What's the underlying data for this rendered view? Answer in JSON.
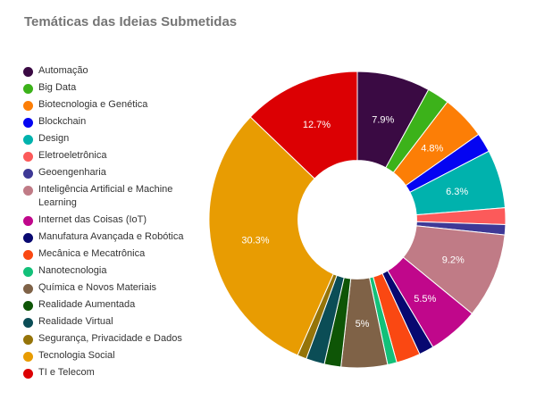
{
  "chart_data": {
    "type": "pie",
    "title": "Temáticas das Ideias Submetidas",
    "legend_position": "left",
    "hole": 0.4,
    "slices": [
      {
        "label": "Automação",
        "value": 7.9,
        "color": "#3a0a43",
        "show_label": true,
        "data_label": "7.9%"
      },
      {
        "label": "Big Data",
        "value": 2.4,
        "color": "#3cb21a",
        "show_label": false,
        "data_label": ""
      },
      {
        "label": "Biotecnologia e Genética",
        "value": 4.8,
        "color": "#fc7e06",
        "show_label": true,
        "data_label": "4.8%"
      },
      {
        "label": "Blockchain",
        "value": 2.1,
        "color": "#0404f2",
        "show_label": false,
        "data_label": ""
      },
      {
        "label": "Design",
        "value": 6.3,
        "color": "#00b2ad",
        "show_label": true,
        "data_label": "6.3%"
      },
      {
        "label": "Eletroeletrônica",
        "value": 1.8,
        "color": "#fc5a5a",
        "show_label": false,
        "data_label": ""
      },
      {
        "label": "Geoengenharia",
        "value": 1.1,
        "color": "#3e3996",
        "show_label": false,
        "data_label": ""
      },
      {
        "label": "Inteligência Artificial e Machine Learning",
        "value": 9.2,
        "color": "#c07b86",
        "show_label": true,
        "data_label": "9.2%"
      },
      {
        "label": "Internet das Coisas (IoT)",
        "value": 5.5,
        "color": "#c0078b",
        "show_label": true,
        "data_label": "5.5%"
      },
      {
        "label": "Manufatura Avançada e Robótica",
        "value": 1.6,
        "color": "#080870",
        "show_label": false,
        "data_label": ""
      },
      {
        "label": "Mecânica e Mecatrônica",
        "value": 2.6,
        "color": "#fa4812",
        "show_label": false,
        "data_label": ""
      },
      {
        "label": "Nanotecnologia",
        "value": 1.0,
        "color": "#13c079",
        "show_label": false,
        "data_label": ""
      },
      {
        "label": "Química e Novos Materiais",
        "value": 5.0,
        "color": "#7f6247",
        "show_label": true,
        "data_label": "5%"
      },
      {
        "label": "Realidade Aumentada",
        "value": 1.8,
        "color": "#0e5506",
        "show_label": false,
        "data_label": ""
      },
      {
        "label": "Realidade Virtual",
        "value": 2.0,
        "color": "#0b4d56",
        "show_label": false,
        "data_label": ""
      },
      {
        "label": "Segurança, Privacidade e Dados",
        "value": 1.0,
        "color": "#957409",
        "show_label": false,
        "data_label": ""
      },
      {
        "label": "Tecnologia Social",
        "value": 30.3,
        "color": "#e89c02",
        "show_label": true,
        "data_label": "30.3%"
      },
      {
        "label": "TI e Telecom",
        "value": 12.7,
        "color": "#dc0003",
        "show_label": true,
        "data_label": "12.7%"
      }
    ]
  }
}
